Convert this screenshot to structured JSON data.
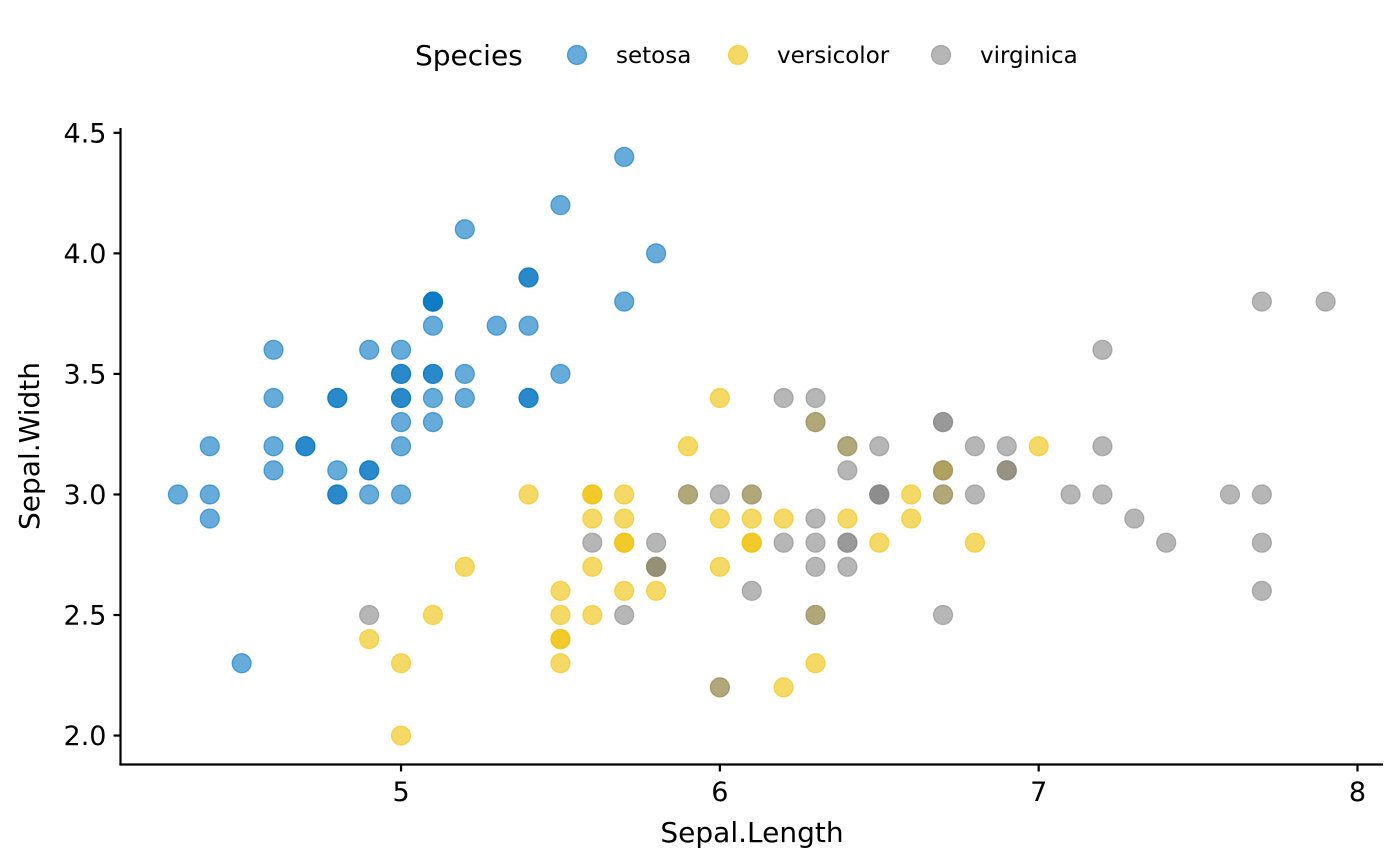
{
  "chart_data": {
    "type": "scatter",
    "xlabel": "Sepal.Length",
    "ylabel": "Sepal.Width",
    "xlim": [
      4.12,
      8.08
    ],
    "ylim": [
      1.88,
      4.52
    ],
    "xticks": [
      5,
      6,
      7,
      8
    ],
    "yticks": [
      2.0,
      2.5,
      3.0,
      3.5,
      4.0,
      4.5
    ],
    "xtick_labels": [
      "5",
      "6",
      "7",
      "8"
    ],
    "ytick_labels": [
      "2.0",
      "2.5",
      "3.0",
      "3.5",
      "4.0",
      "4.5"
    ],
    "grid": false,
    "legend": {
      "title": "Species",
      "position": "top"
    },
    "series": [
      {
        "name": "setosa",
        "color": "#0073C2",
        "x": [
          5.1,
          4.9,
          4.7,
          4.6,
          5.0,
          5.4,
          4.6,
          5.0,
          4.4,
          4.9,
          5.4,
          4.8,
          4.8,
          4.3,
          5.8,
          5.7,
          5.4,
          5.1,
          5.7,
          5.1,
          5.4,
          5.1,
          4.6,
          5.1,
          4.8,
          5.0,
          5.0,
          5.2,
          5.2,
          4.7,
          4.8,
          5.4,
          5.2,
          5.5,
          4.9,
          5.0,
          5.5,
          4.9,
          4.4,
          5.1,
          5.0,
          4.5,
          4.4,
          5.0,
          5.1,
          4.8,
          5.1,
          4.6,
          5.3,
          5.0
        ],
        "y": [
          3.5,
          3.0,
          3.2,
          3.1,
          3.6,
          3.9,
          3.4,
          3.4,
          2.9,
          3.1,
          3.7,
          3.4,
          3.0,
          3.0,
          4.0,
          4.4,
          3.9,
          3.5,
          3.8,
          3.8,
          3.4,
          3.7,
          3.6,
          3.3,
          3.4,
          3.0,
          3.4,
          3.5,
          3.4,
          3.2,
          3.1,
          3.4,
          4.1,
          4.2,
          3.1,
          3.2,
          3.5,
          3.6,
          3.0,
          3.4,
          3.5,
          2.3,
          3.2,
          3.5,
          3.8,
          3.0,
          3.8,
          3.2,
          3.7,
          3.3
        ]
      },
      {
        "name": "versicolor",
        "color": "#EFC000",
        "x": [
          7.0,
          6.4,
          6.9,
          5.5,
          6.5,
          5.7,
          6.3,
          4.9,
          6.6,
          5.2,
          5.0,
          5.9,
          6.0,
          6.1,
          5.6,
          6.7,
          5.6,
          5.8,
          6.2,
          5.6,
          5.9,
          6.1,
          6.3,
          6.1,
          6.4,
          6.6,
          6.8,
          6.7,
          6.0,
          5.7,
          5.5,
          5.5,
          5.8,
          6.0,
          5.4,
          6.0,
          6.7,
          6.3,
          5.6,
          5.5,
          5.5,
          6.1,
          5.8,
          5.0,
          5.6,
          5.7,
          5.7,
          6.2,
          5.1,
          5.7
        ],
        "y": [
          3.2,
          3.2,
          3.1,
          2.3,
          2.8,
          2.8,
          3.3,
          2.4,
          2.9,
          2.7,
          2.0,
          3.0,
          2.2,
          2.9,
          2.9,
          3.1,
          3.0,
          2.7,
          2.2,
          2.5,
          3.2,
          2.8,
          2.5,
          2.8,
          2.9,
          3.0,
          2.8,
          3.0,
          2.9,
          2.6,
          2.4,
          2.4,
          2.7,
          2.7,
          3.0,
          3.4,
          3.1,
          2.3,
          3.0,
          2.5,
          2.6,
          3.0,
          2.6,
          2.3,
          2.7,
          3.0,
          2.9,
          2.9,
          2.5,
          2.8
        ]
      },
      {
        "name": "virginica",
        "color": "#868686",
        "x": [
          6.3,
          5.8,
          7.1,
          6.3,
          6.5,
          7.6,
          4.9,
          7.3,
          6.7,
          7.2,
          6.5,
          6.4,
          6.8,
          5.7,
          5.8,
          6.4,
          6.5,
          7.7,
          7.7,
          6.0,
          6.9,
          5.6,
          7.7,
          6.3,
          6.7,
          7.2,
          6.2,
          6.1,
          6.4,
          7.2,
          7.4,
          7.9,
          6.4,
          6.3,
          6.1,
          7.7,
          6.3,
          6.4,
          6.0,
          6.9,
          6.7,
          6.9,
          5.8,
          6.8,
          6.7,
          6.7,
          6.3,
          6.5,
          6.2,
          5.9
        ],
        "y": [
          3.3,
          2.7,
          3.0,
          2.9,
          3.0,
          3.0,
          2.5,
          2.9,
          2.5,
          3.6,
          3.2,
          2.7,
          3.0,
          2.5,
          2.8,
          3.2,
          3.0,
          3.8,
          2.6,
          2.2,
          3.2,
          2.8,
          2.8,
          2.7,
          3.3,
          3.2,
          2.8,
          3.0,
          2.8,
          3.0,
          2.8,
          3.8,
          2.8,
          2.8,
          2.6,
          3.0,
          3.4,
          3.1,
          3.0,
          3.1,
          3.1,
          3.1,
          2.7,
          3.2,
          3.3,
          3.0,
          2.5,
          3.0,
          3.4,
          3.0
        ]
      }
    ]
  }
}
